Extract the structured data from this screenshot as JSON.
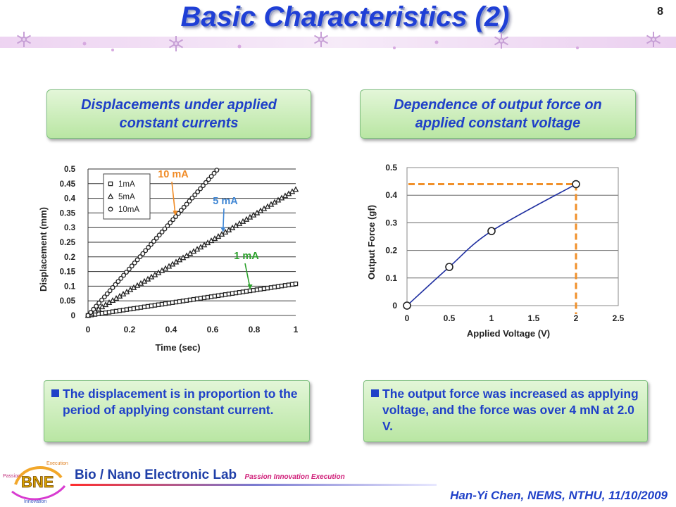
{
  "slide": {
    "title": "Basic Characteristics (2)",
    "page_number": "8",
    "author_line": "Han-Yi Chen, NEMS, NTHU, 11/10/2009"
  },
  "left_panel": {
    "heading_line1": "Displacements under applied",
    "heading_line2": "constant currents",
    "note_text": "The displacement is in proportion to the period of applying constant current."
  },
  "right_panel": {
    "heading_line1": "Dependence of output force on",
    "heading_line2": "applied constant voltage",
    "note_text": "The output force was increased as applying voltage, and the force was over 4 mN at 2.0 V."
  },
  "logo": {
    "lab_prefix": "Bio / Nano ",
    "lab_name": "Electronic Lab",
    "tagline": "Passion Innovation Execution",
    "badge_text": "BNE",
    "badge_words": [
      "Passion",
      "Innovation",
      "Execution"
    ]
  },
  "colors": {
    "title_blue": "#1f3fd6",
    "label_orange": "#f08a24",
    "label_blue": "#3f86d4",
    "label_green": "#2aa02a",
    "force_line": "#1f2fa0",
    "dash_orange": "#f0902a"
  },
  "chart_data": [
    {
      "type": "scatter",
      "xlabel": "Time (sec)",
      "ylabel": "Displacement (mm)",
      "xlim": [
        0,
        1
      ],
      "ylim": [
        0,
        0.5
      ],
      "x_ticks": [
        "0",
        "0.2",
        "0.4",
        "0.6",
        "0.8",
        "1"
      ],
      "x_tick_values": [
        0,
        0.2,
        0.4,
        0.6,
        0.8,
        1
      ],
      "y_ticks": [
        "0",
        "0.05",
        "0.1",
        "0.15",
        "0.2",
        "0.25",
        "0.3",
        "0.35",
        "0.4",
        "0.45",
        "0.5"
      ],
      "y_tick_values": [
        0,
        0.05,
        0.1,
        0.15,
        0.2,
        0.25,
        0.3,
        0.35,
        0.4,
        0.45,
        0.5
      ],
      "grid": "horizontal",
      "legend_position": "top-left",
      "series": [
        {
          "name": "1mA",
          "marker": "square",
          "x_start": 0,
          "x_end": 1.0,
          "slope": 0.108,
          "offset": 0,
          "points": 60,
          "callout": "1 mA",
          "callout_x": 0.78
        },
        {
          "name": "5mA",
          "marker": "triangle",
          "x_start": 0,
          "x_end": 1.0,
          "slope": 0.43,
          "offset": 0,
          "points": 60,
          "callout": "5 mA",
          "callout_x": 0.65
        },
        {
          "name": "10mA",
          "marker": "circle",
          "x_start": 0,
          "x_end": 0.62,
          "slope": 0.8,
          "offset": 0,
          "points": 48,
          "callout": "10 mA",
          "callout_x": 0.42
        }
      ]
    },
    {
      "type": "line",
      "xlabel": "Applied Voltage (V)",
      "ylabel": "Output Force (gf)",
      "xlim": [
        0,
        2.5
      ],
      "ylim": [
        0,
        0.5
      ],
      "x_ticks": [
        "0",
        "0.5",
        "1",
        "1.5",
        "2",
        "2.5"
      ],
      "x_tick_values": [
        0,
        0.5,
        1,
        1.5,
        2,
        2.5
      ],
      "y_ticks": [
        "0",
        "0.1",
        "0.2",
        "0.3",
        "0.4",
        "0.5"
      ],
      "y_tick_values": [
        0,
        0.1,
        0.2,
        0.3,
        0.4,
        0.5
      ],
      "grid": "horizontal",
      "x": [
        0,
        0.5,
        1.0,
        2.0
      ],
      "y": [
        0.0,
        0.14,
        0.27,
        0.44
      ],
      "highlight_point": {
        "x": 2.0,
        "y": 0.44
      }
    }
  ]
}
